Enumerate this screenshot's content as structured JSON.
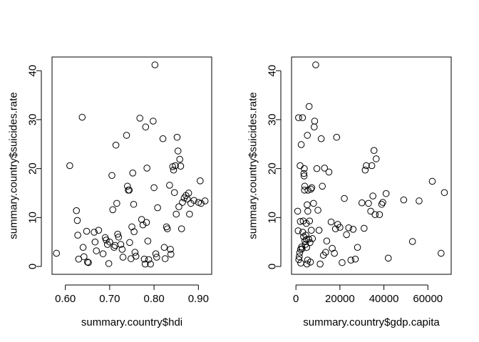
{
  "chart_data": [
    {
      "type": "scatter",
      "xlabel": "summary.country$hdi",
      "ylabel": "summary.country$suicides.rate",
      "xlim": [
        0.57,
        0.93
      ],
      "ylim": [
        -1.6,
        42.8
      ],
      "xticks": [
        0.6,
        0.7,
        0.8,
        0.9
      ],
      "xtick_labels": [
        "0.60",
        "0.70",
        "0.80",
        "0.90"
      ],
      "yticks": [
        0,
        10,
        20,
        30,
        40
      ],
      "ytick_labels": [
        "0",
        "10",
        "20",
        "30",
        "40"
      ],
      "points": [
        [
          0.58,
          2.7
        ],
        [
          0.61,
          20.6
        ],
        [
          0.625,
          11.4
        ],
        [
          0.627,
          9.4
        ],
        [
          0.628,
          6.4
        ],
        [
          0.63,
          1.5
        ],
        [
          0.638,
          30.5
        ],
        [
          0.64,
          3.9
        ],
        [
          0.642,
          2.0
        ],
        [
          0.648,
          7.2
        ],
        [
          0.65,
          0.9
        ],
        [
          0.652,
          0.8
        ],
        [
          0.665,
          7.0
        ],
        [
          0.667,
          5.0
        ],
        [
          0.67,
          3.2
        ],
        [
          0.675,
          7.4
        ],
        [
          0.685,
          2.6
        ],
        [
          0.69,
          5.9
        ],
        [
          0.692,
          5.4
        ],
        [
          0.695,
          4.5
        ],
        [
          0.698,
          0.6
        ],
        [
          0.7,
          5.0
        ],
        [
          0.705,
          18.6
        ],
        [
          0.707,
          11.6
        ],
        [
          0.71,
          3.9
        ],
        [
          0.712,
          4.3
        ],
        [
          0.714,
          24.8
        ],
        [
          0.716,
          12.9
        ],
        [
          0.718,
          6.6
        ],
        [
          0.72,
          6.0
        ],
        [
          0.725,
          4.5
        ],
        [
          0.728,
          3.5
        ],
        [
          0.73,
          1.9
        ],
        [
          0.738,
          26.8
        ],
        [
          0.74,
          16.4
        ],
        [
          0.742,
          15.6
        ],
        [
          0.744,
          15.6
        ],
        [
          0.745,
          4.9
        ],
        [
          0.748,
          1.6
        ],
        [
          0.75,
          8.1
        ],
        [
          0.752,
          19.1
        ],
        [
          0.754,
          12.7
        ],
        [
          0.755,
          7.1
        ],
        [
          0.757,
          2.9
        ],
        [
          0.759,
          2.1
        ],
        [
          0.768,
          30.3
        ],
        [
          0.772,
          9.6
        ],
        [
          0.775,
          8.5
        ],
        [
          0.778,
          1.5
        ],
        [
          0.78,
          0.5
        ],
        [
          0.781,
          28.5
        ],
        [
          0.783,
          9.0
        ],
        [
          0.784,
          20.1
        ],
        [
          0.786,
          5.2
        ],
        [
          0.788,
          1.4
        ],
        [
          0.792,
          0.5
        ],
        [
          0.798,
          29.7
        ],
        [
          0.8,
          16.1
        ],
        [
          0.802,
          41.2
        ],
        [
          0.804,
          2.6
        ],
        [
          0.806,
          1.9
        ],
        [
          0.808,
          12.0
        ],
        [
          0.82,
          26.1
        ],
        [
          0.823,
          3.9
        ],
        [
          0.825,
          1.6
        ],
        [
          0.828,
          8.1
        ],
        [
          0.83,
          7.7
        ],
        [
          0.835,
          16.6
        ],
        [
          0.837,
          3.5
        ],
        [
          0.838,
          2.5
        ],
        [
          0.842,
          20.4
        ],
        [
          0.844,
          19.7
        ],
        [
          0.846,
          15.1
        ],
        [
          0.848,
          20.6
        ],
        [
          0.85,
          10.7
        ],
        [
          0.852,
          26.4
        ],
        [
          0.854,
          23.6
        ],
        [
          0.856,
          12.2
        ],
        [
          0.858,
          21.9
        ],
        [
          0.86,
          20.5
        ],
        [
          0.862,
          7.7
        ],
        [
          0.864,
          13.1
        ],
        [
          0.868,
          14.0
        ],
        [
          0.872,
          14.5
        ],
        [
          0.875,
          13.8
        ],
        [
          0.878,
          15.0
        ],
        [
          0.88,
          10.7
        ],
        [
          0.883,
          12.9
        ],
        [
          0.89,
          13.5
        ],
        [
          0.9,
          13.1
        ],
        [
          0.904,
          17.5
        ],
        [
          0.906,
          12.9
        ],
        [
          0.915,
          13.4
        ]
      ]
    },
    {
      "type": "scatter",
      "xlabel": "summary.country$gdp.capita",
      "ylabel": "summary.country$suicides.rate",
      "xlim": [
        -2000,
        70600
      ],
      "ylim": [
        -1.6,
        42.8
      ],
      "xticks": [
        0,
        20000,
        40000,
        60000
      ],
      "xtick_labels": [
        "0",
        "20000",
        "40000",
        "60000"
      ],
      "yticks": [
        0,
        10,
        20,
        30,
        40
      ],
      "ytick_labels": [
        "0",
        "10",
        "20",
        "30",
        "40"
      ],
      "points": [
        [
          800,
          11.3
        ],
        [
          1000,
          7.3
        ],
        [
          1200,
          30.4
        ],
        [
          1300,
          1.4
        ],
        [
          1500,
          2.0
        ],
        [
          1700,
          2.8
        ],
        [
          1900,
          20.6
        ],
        [
          2000,
          9.2
        ],
        [
          2100,
          3.5
        ],
        [
          2200,
          0.7
        ],
        [
          2400,
          24.9
        ],
        [
          2600,
          4.0
        ],
        [
          2800,
          3.6
        ],
        [
          3000,
          30.4
        ],
        [
          3100,
          7.0
        ],
        [
          3300,
          9.3
        ],
        [
          3500,
          6.1
        ],
        [
          3600,
          19.0
        ],
        [
          3700,
          18.5
        ],
        [
          3800,
          20.0
        ],
        [
          3900,
          15.6
        ],
        [
          4000,
          16.4
        ],
        [
          4100,
          5.2
        ],
        [
          4300,
          4.5
        ],
        [
          4500,
          6.4
        ],
        [
          4700,
          8.8
        ],
        [
          4800,
          5.5
        ],
        [
          4900,
          3.9
        ],
        [
          5000,
          0.5
        ],
        [
          5100,
          12.6
        ],
        [
          5200,
          26.8
        ],
        [
          5300,
          1.3
        ],
        [
          5400,
          11.3
        ],
        [
          5500,
          15.6
        ],
        [
          5800,
          5.6
        ],
        [
          6000,
          32.7
        ],
        [
          6200,
          9.3
        ],
        [
          6400,
          4.9
        ],
        [
          6600,
          0.9
        ],
        [
          6800,
          15.8
        ],
        [
          7000,
          7.4
        ],
        [
          7200,
          16.1
        ],
        [
          7500,
          5.7
        ],
        [
          8000,
          12.9
        ],
        [
          8300,
          28.5
        ],
        [
          8500,
          29.7
        ],
        [
          9000,
          41.2
        ],
        [
          9500,
          20.0
        ],
        [
          10000,
          11.5
        ],
        [
          10500,
          7.4
        ],
        [
          11000,
          0.5
        ],
        [
          11500,
          26.1
        ],
        [
          12000,
          16.4
        ],
        [
          12500,
          2.3
        ],
        [
          13000,
          20.1
        ],
        [
          13500,
          2.9
        ],
        [
          14000,
          5.2
        ],
        [
          15000,
          19.3
        ],
        [
          16000,
          9.1
        ],
        [
          16500,
          3.7
        ],
        [
          17500,
          2.7
        ],
        [
          18000,
          7.7
        ],
        [
          18500,
          26.4
        ],
        [
          19000,
          8.6
        ],
        [
          20000,
          8.0
        ],
        [
          21000,
          0.8
        ],
        [
          22000,
          13.9
        ],
        [
          23000,
          6.5
        ],
        [
          24000,
          7.9
        ],
        [
          25000,
          1.3
        ],
        [
          26000,
          7.6
        ],
        [
          27000,
          1.5
        ],
        [
          28000,
          3.9
        ],
        [
          30000,
          13.0
        ],
        [
          31000,
          7.8
        ],
        [
          31500,
          19.7
        ],
        [
          32000,
          20.6
        ],
        [
          33000,
          12.9
        ],
        [
          34000,
          11.3
        ],
        [
          34500,
          20.6
        ],
        [
          35000,
          14.4
        ],
        [
          35500,
          23.7
        ],
        [
          36000,
          10.6
        ],
        [
          36500,
          22.0
        ],
        [
          38000,
          10.6
        ],
        [
          39000,
          12.7
        ],
        [
          39500,
          13.1
        ],
        [
          41000,
          14.9
        ],
        [
          42000,
          1.7
        ],
        [
          49000,
          13.6
        ],
        [
          53000,
          5.1
        ],
        [
          56000,
          13.4
        ],
        [
          62000,
          17.4
        ],
        [
          66000,
          2.7
        ],
        [
          67500,
          15.1
        ]
      ]
    }
  ]
}
